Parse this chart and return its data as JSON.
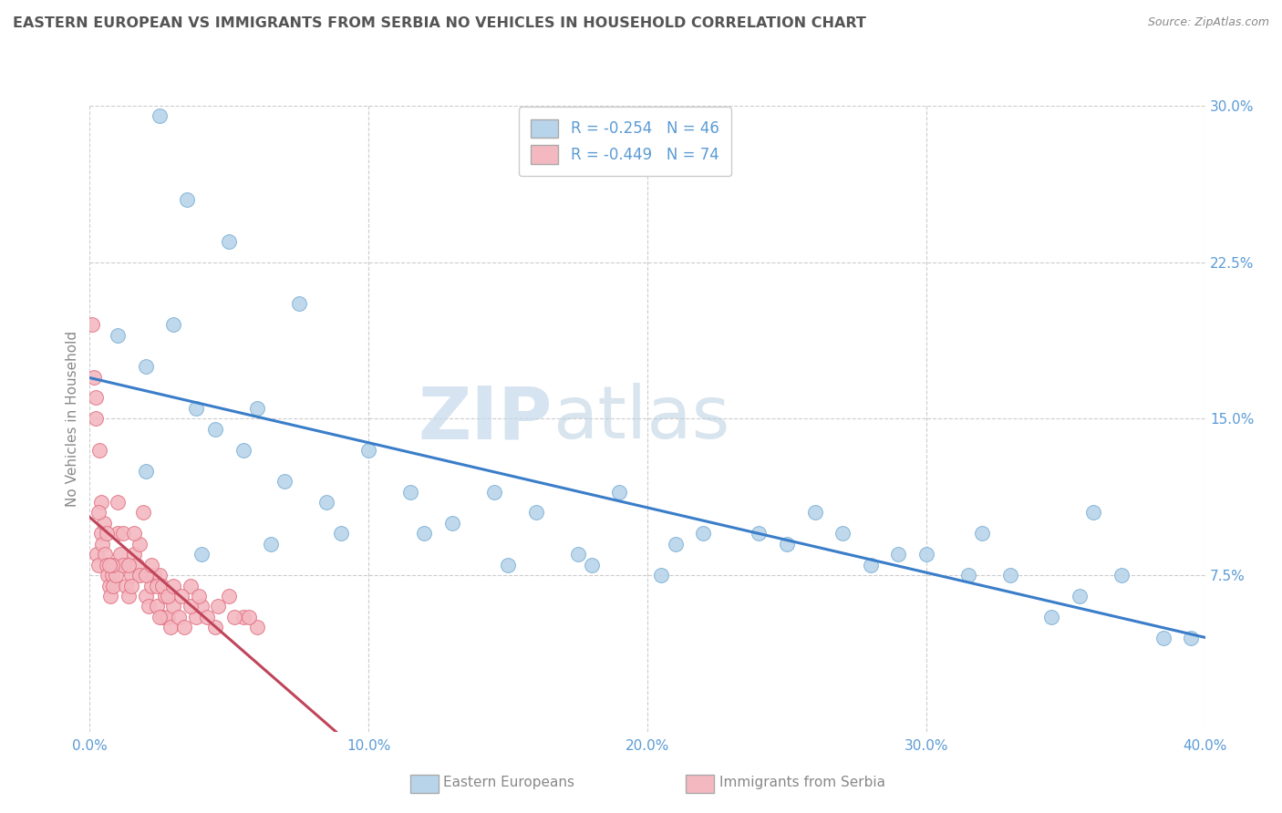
{
  "title": "EASTERN EUROPEAN VS IMMIGRANTS FROM SERBIA NO VEHICLES IN HOUSEHOLD CORRELATION CHART",
  "source": "Source: ZipAtlas.com",
  "ylabel": "No Vehicles in Household",
  "watermark_zip": "ZIP",
  "watermark_atlas": "atlas",
  "xlim": [
    0.0,
    40.0
  ],
  "ylim": [
    0.0,
    30.0
  ],
  "xticks": [
    0.0,
    10.0,
    20.0,
    30.0,
    40.0
  ],
  "yticks_right": [
    7.5,
    15.0,
    22.5,
    30.0
  ],
  "series": [
    {
      "name": "Eastern Europeans",
      "color": "#b8d4ea",
      "edge_color": "#7aafd4",
      "R": -0.254,
      "N": 46,
      "line_color": "#3a7dc9",
      "x": [
        2.5,
        3.5,
        5.0,
        7.5,
        1.0,
        2.0,
        3.0,
        3.8,
        4.5,
        5.5,
        6.0,
        7.0,
        8.5,
        10.0,
        11.5,
        13.0,
        14.5,
        16.0,
        17.5,
        19.0,
        20.5,
        22.0,
        24.0,
        26.0,
        28.0,
        30.0,
        32.0,
        34.5,
        36.0,
        38.5,
        2.0,
        4.0,
        6.5,
        9.0,
        12.0,
        15.0,
        18.0,
        21.0,
        25.0,
        27.0,
        29.0,
        31.5,
        33.0,
        35.5,
        37.0,
        39.5
      ],
      "y": [
        29.5,
        25.5,
        23.5,
        20.5,
        19.0,
        17.5,
        19.5,
        15.5,
        14.5,
        13.5,
        15.5,
        12.0,
        11.0,
        13.5,
        11.5,
        10.0,
        11.5,
        10.5,
        8.5,
        11.5,
        7.5,
        9.5,
        9.5,
        10.5,
        8.0,
        8.5,
        9.5,
        5.5,
        10.5,
        4.5,
        12.5,
        8.5,
        9.0,
        9.5,
        9.5,
        8.0,
        8.0,
        9.0,
        9.0,
        9.5,
        8.5,
        7.5,
        7.5,
        6.5,
        7.5,
        4.5
      ]
    },
    {
      "name": "Immigrants from Serbia",
      "color": "#f4b8c1",
      "edge_color": "#e07080",
      "R": -0.449,
      "N": 74,
      "line_color": "#c0455a",
      "x": [
        0.1,
        0.15,
        0.2,
        0.25,
        0.3,
        0.35,
        0.4,
        0.45,
        0.5,
        0.55,
        0.6,
        0.65,
        0.7,
        0.75,
        0.8,
        0.85,
        0.9,
        0.95,
        1.0,
        1.1,
        1.2,
        1.3,
        1.4,
        1.5,
        1.6,
        1.7,
        1.8,
        1.9,
        2.0,
        2.1,
        2.2,
        2.3,
        2.4,
        2.5,
        2.6,
        2.7,
        2.8,
        2.9,
        3.0,
        3.2,
        3.4,
        3.6,
        3.8,
        4.0,
        4.5,
        5.0,
        5.5,
        6.0,
        0.2,
        0.4,
        0.6,
        0.8,
        1.0,
        1.2,
        1.4,
        1.6,
        1.8,
        2.0,
        2.2,
        2.4,
        2.6,
        2.8,
        3.0,
        3.3,
        3.6,
        3.9,
        4.2,
        4.6,
        5.2,
        5.7,
        0.3,
        0.7,
        1.5,
        2.5
      ],
      "y": [
        19.5,
        17.0,
        15.0,
        8.5,
        8.0,
        13.5,
        9.5,
        9.0,
        10.0,
        8.5,
        8.0,
        7.5,
        7.0,
        6.5,
        7.5,
        7.0,
        8.0,
        7.5,
        9.5,
        8.5,
        8.0,
        7.0,
        6.5,
        7.5,
        8.5,
        8.0,
        9.0,
        10.5,
        6.5,
        6.0,
        7.0,
        7.5,
        6.0,
        7.5,
        5.5,
        6.5,
        5.5,
        5.0,
        6.0,
        5.5,
        5.0,
        7.0,
        5.5,
        6.0,
        5.0,
        6.5,
        5.5,
        5.0,
        16.0,
        11.0,
        9.5,
        8.0,
        11.0,
        9.5,
        8.0,
        9.5,
        7.5,
        7.5,
        8.0,
        7.0,
        7.0,
        6.5,
        7.0,
        6.5,
        6.0,
        6.5,
        5.5,
        6.0,
        5.5,
        5.5,
        10.5,
        8.0,
        7.0,
        5.5
      ]
    }
  ],
  "background_color": "#ffffff",
  "plot_bg_color": "#ffffff",
  "grid_color": "#cccccc",
  "title_color": "#555555",
  "axis_color": "#5b9bd5",
  "label_color": "#888888"
}
